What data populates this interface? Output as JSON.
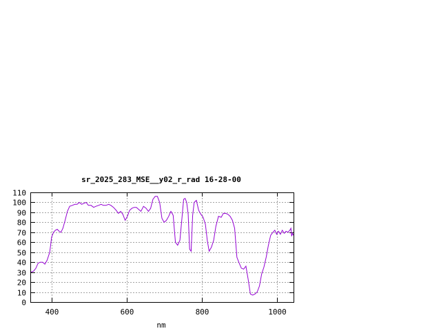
{
  "chart_data": {
    "type": "line",
    "title": "sr_2025_283_MSE__y02_r_rad 16-28-00",
    "xlabel": "nm",
    "ylabel": "",
    "xlim": [
      345,
      1045
    ],
    "ylim": [
      0,
      110
    ],
    "xticks": [
      400,
      600,
      800,
      1000
    ],
    "yticks": [
      0,
      10,
      20,
      30,
      40,
      50,
      60,
      70,
      80,
      90,
      100,
      110
    ],
    "grid": true,
    "colors": {
      "series": "#9400d3",
      "grid": "#a0a0a0",
      "axis": "#000000"
    },
    "series": [
      {
        "x": [
          345,
          352,
          358,
          364,
          370,
          376,
          382,
          388,
          395,
          400,
          405,
          410,
          415,
          420,
          425,
          430,
          436,
          442,
          448,
          455,
          462,
          468,
          474,
          480,
          486,
          492,
          498,
          505,
          512,
          518,
          525,
          532,
          538,
          545,
          552,
          558,
          565,
          572,
          578,
          584,
          590,
          596,
          602,
          608,
          614,
          620,
          626,
          632,
          638,
          645,
          652,
          658,
          664,
          670,
          676,
          682,
          688,
          694,
          700,
          706,
          712,
          718,
          724,
          730,
          736,
          742,
          748,
          752,
          756,
          760,
          764,
          768,
          772,
          776,
          780,
          786,
          792,
          798,
          804,
          810,
          815,
          820,
          826,
          832,
          838,
          845,
          852,
          858,
          864,
          870,
          876,
          882,
          888,
          894,
          900,
          906,
          912,
          918,
          924,
          930,
          936,
          942,
          948,
          954,
          960,
          966,
          972,
          978,
          984,
          990,
          995,
          1000,
          1005,
          1010,
          1015,
          1020,
          1025,
          1030,
          1035,
          1038,
          1040,
          1042,
          1045
        ],
        "y": [
          30,
          31,
          34,
          39,
          40,
          40,
          38,
          42,
          50,
          65,
          70,
          72,
          73,
          71,
          70,
          74,
          82,
          91,
          96,
          97,
          98,
          98,
          100,
          98,
          99,
          100,
          97,
          97,
          95,
          96,
          97,
          98,
          97,
          97,
          98,
          97,
          95,
          92,
          89,
          91,
          88,
          82,
          86,
          92,
          94,
          95,
          95,
          93,
          91,
          96,
          94,
          91,
          94,
          103,
          106,
          106,
          100,
          84,
          80,
          82,
          86,
          91,
          87,
          60,
          57,
          62,
          86,
          103,
          104,
          100,
          88,
          53,
          51,
          87,
          100,
          102,
          92,
          88,
          85,
          78,
          62,
          51,
          55,
          62,
          76,
          86,
          85,
          89,
          89,
          88,
          86,
          82,
          74,
          45,
          39,
          34,
          33,
          36,
          23,
          8,
          7,
          8,
          10,
          16,
          28,
          35,
          45,
          57,
          67,
          70,
          72,
          68,
          71,
          68,
          72,
          69,
          71,
          70,
          72,
          74,
          66,
          69,
          67
        ]
      }
    ]
  }
}
